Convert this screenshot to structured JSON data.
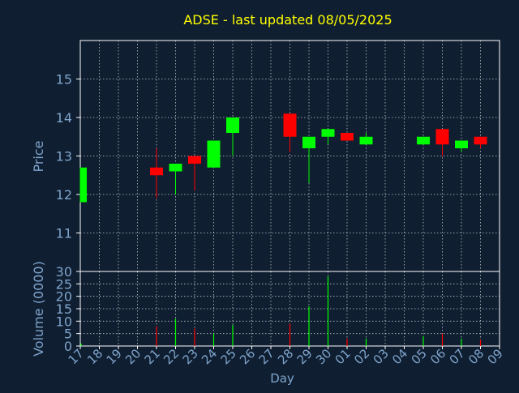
{
  "colors": {
    "background": "#0f1e30",
    "axis": "#ffffff",
    "grid": "#ffffff",
    "title": "#ffff00",
    "labels": "#7fa4cc",
    "up": "#00ff00",
    "down": "#ff0000"
  },
  "chart_data": [
    {
      "type": "candlestick",
      "title": "ADSE - last updated 08/05/2025",
      "ylabel": "Price",
      "ylim": [
        10,
        16
      ],
      "yticks": [
        11,
        12,
        13,
        14,
        15
      ],
      "grid": true,
      "x_dates": [
        "17",
        "18",
        "19",
        "20",
        "21",
        "22",
        "23",
        "24",
        "25",
        "26",
        "27",
        "28",
        "29",
        "30",
        "01",
        "02",
        "03",
        "04",
        "05",
        "06",
        "07",
        "08",
        "09"
      ],
      "candles": [
        {
          "date": "17",
          "open": 11.8,
          "high": 12.7,
          "low": 11.8,
          "close": 12.7
        },
        {
          "date": "21",
          "open": 12.7,
          "high": 13.2,
          "low": 11.9,
          "close": 12.5
        },
        {
          "date": "22",
          "open": 12.6,
          "high": 12.8,
          "low": 12.0,
          "close": 12.8
        },
        {
          "date": "23",
          "open": 13.0,
          "high": 13.0,
          "low": 12.1,
          "close": 12.8
        },
        {
          "date": "24",
          "open": 12.7,
          "high": 13.4,
          "low": 12.7,
          "close": 13.4
        },
        {
          "date": "25",
          "open": 13.6,
          "high": 14.0,
          "low": 13.0,
          "close": 14.0
        },
        {
          "date": "28",
          "open": 14.1,
          "high": 14.1,
          "low": 13.1,
          "close": 13.5
        },
        {
          "date": "29",
          "open": 13.2,
          "high": 13.5,
          "low": 12.3,
          "close": 13.5
        },
        {
          "date": "30",
          "open": 13.5,
          "high": 13.7,
          "low": 13.3,
          "close": 13.7
        },
        {
          "date": "01",
          "open": 13.6,
          "high": 13.6,
          "low": 13.4,
          "close": 13.4
        },
        {
          "date": "02",
          "open": 13.3,
          "high": 13.6,
          "low": 13.3,
          "close": 13.5
        },
        {
          "date": "05",
          "open": 13.3,
          "high": 13.5,
          "low": 13.3,
          "close": 13.5
        },
        {
          "date": "06",
          "open": 13.7,
          "high": 13.7,
          "low": 13.0,
          "close": 13.3
        },
        {
          "date": "07",
          "open": 13.2,
          "high": 13.4,
          "low": 13.1,
          "close": 13.4
        },
        {
          "date": "08",
          "open": 13.5,
          "high": 13.5,
          "low": 13.2,
          "close": 13.3
        }
      ]
    },
    {
      "type": "bar",
      "ylabel": "Volume (0000)",
      "xlabel": "Day",
      "ylim": [
        0,
        30
      ],
      "yticks": [
        0,
        5,
        10,
        15,
        20,
        25,
        30
      ],
      "grid": true,
      "categories": [
        "17",
        "18",
        "19",
        "20",
        "21",
        "22",
        "23",
        "24",
        "25",
        "26",
        "27",
        "28",
        "29",
        "30",
        "01",
        "02",
        "03",
        "04",
        "05",
        "06",
        "07",
        "08",
        "09"
      ],
      "values": [
        1,
        0,
        0,
        0,
        8,
        11,
        7,
        5,
        8.5,
        0,
        0,
        9,
        16,
        28,
        3,
        3,
        0,
        0,
        4,
        5,
        3,
        2.5,
        0
      ],
      "bar_direction": [
        "up",
        "",
        "",
        "",
        "down",
        "up",
        "down",
        "up",
        "up",
        "",
        "",
        "down",
        "up",
        "up",
        "down",
        "up",
        "",
        "",
        "up",
        "down",
        "up",
        "down",
        ""
      ]
    }
  ]
}
